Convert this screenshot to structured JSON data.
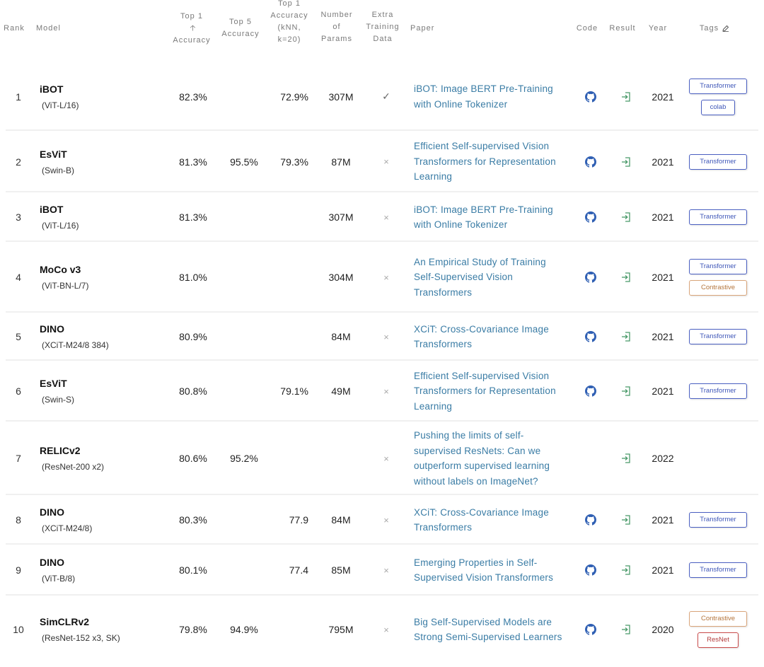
{
  "header": {
    "rank": "Rank",
    "model": "Model",
    "top1": [
      "Top 1",
      "Accuracy"
    ],
    "top5": [
      "Top 5",
      "Accuracy"
    ],
    "knn": [
      "Top 1",
      "Accuracy",
      "(kNN,",
      "k=20)"
    ],
    "params": [
      "Number",
      "of",
      "Params"
    ],
    "extra": [
      "Extra",
      "Training",
      "Data"
    ],
    "paper": "Paper",
    "code": "Code",
    "result": "Result",
    "year": "Year",
    "tags": "Tags"
  },
  "colors": {
    "paper_link": "#3a7ca5",
    "tag_transformer": "#3e56b8",
    "tag_contrastive": "#b4753c",
    "tag_resnet": "#b33b3b",
    "code_icon": "#2f5fb3",
    "result_icon": "#4a9a6a"
  },
  "icons": {
    "code": "github-icon",
    "result": "result-arrow-icon",
    "tags_edit": "edit-icon",
    "sort": "sort-up-arrow"
  },
  "rows": [
    {
      "rank": "1",
      "model": "iBOT",
      "variant": "(ViT-L/16)",
      "top1": "82.3%",
      "top5": "",
      "knn": "72.9%",
      "params": "307M",
      "extra": "✓",
      "paper": [
        "iBOT: Image BERT Pre-Training",
        "with Online Tokenizer"
      ],
      "code": true,
      "year": "2021",
      "tags": [
        {
          "label": "Transformer",
          "style": "blue"
        },
        {
          "label": "colab",
          "style": "blue-small"
        }
      ]
    },
    {
      "rank": "2",
      "model": "EsViT",
      "variant": "(Swin-B)",
      "top1": "81.3%",
      "top5": "95.5%",
      "knn": "79.3%",
      "params": "87M",
      "extra": "×",
      "paper": [
        "Efficient Self-supervised Vision",
        "Transformers for Representation",
        "Learning"
      ],
      "code": true,
      "year": "2021",
      "tags": [
        {
          "label": "Transformer",
          "style": "blue"
        }
      ]
    },
    {
      "rank": "3",
      "model": "iBOT",
      "variant": "(ViT-L/16)",
      "top1": "81.3%",
      "top5": "",
      "knn": "",
      "params": "307M",
      "extra": "×",
      "paper": [
        "iBOT: Image BERT Pre-Training",
        "with Online Tokenizer"
      ],
      "code": true,
      "year": "2021",
      "tags": [
        {
          "label": "Transformer",
          "style": "blue"
        }
      ]
    },
    {
      "rank": "4",
      "model": "MoCo v3",
      "variant": "(ViT-BN-L/7)",
      "top1": "81.0%",
      "top5": "",
      "knn": "",
      "params": "304M",
      "extra": "×",
      "paper": [
        "An Empirical Study of Training",
        "Self-Supervised Vision",
        "Transformers"
      ],
      "code": true,
      "year": "2021",
      "tags": [
        {
          "label": "Transformer",
          "style": "blue"
        },
        {
          "label": "Contrastive",
          "style": "orange"
        }
      ]
    },
    {
      "rank": "5",
      "model": "DINO",
      "variant": "(XCiT-M24/8 384)",
      "top1": "80.9%",
      "top5": "",
      "knn": "",
      "params": "84M",
      "extra": "×",
      "paper": [
        "XCiT: Cross-Covariance Image",
        "Transformers"
      ],
      "code": true,
      "year": "2021",
      "tags": [
        {
          "label": "Transformer",
          "style": "blue"
        }
      ]
    },
    {
      "rank": "6",
      "model": "EsViT",
      "variant": "(Swin-S)",
      "top1": "80.8%",
      "top5": "",
      "knn": "79.1%",
      "params": "49M",
      "extra": "×",
      "paper": [
        "Efficient Self-supervised Vision",
        "Transformers for Representation",
        "Learning"
      ],
      "code": true,
      "year": "2021",
      "tags": [
        {
          "label": "Transformer",
          "style": "blue"
        }
      ]
    },
    {
      "rank": "7",
      "model": "RELICv2",
      "variant": "(ResNet-200 x2)",
      "top1": "80.6%",
      "top5": "95.2%",
      "knn": "",
      "params": "",
      "extra": "×",
      "paper": [
        "Pushing the limits of self-",
        "supervised ResNets: Can we",
        "outperform supervised learning",
        "without labels on ImageNet?"
      ],
      "code": false,
      "year": "2022",
      "tags": []
    },
    {
      "rank": "8",
      "model": "DINO",
      "variant": "(XCiT-M24/8)",
      "top1": "80.3%",
      "top5": "",
      "knn": "77.9",
      "params": "84M",
      "extra": "×",
      "paper": [
        "XCiT: Cross-Covariance Image",
        "Transformers"
      ],
      "code": true,
      "year": "2021",
      "tags": [
        {
          "label": "Transformer",
          "style": "blue"
        }
      ]
    },
    {
      "rank": "9",
      "model": "DINO",
      "variant": "(ViT-B/8)",
      "top1": "80.1%",
      "top5": "",
      "knn": "77.4",
      "params": "85M",
      "extra": "×",
      "paper": [
        "Emerging Properties in Self-",
        "Supervised Vision Transformers"
      ],
      "code": true,
      "year": "2021",
      "tags": [
        {
          "label": "Transformer",
          "style": "blue"
        }
      ]
    },
    {
      "rank": "10",
      "model": "SimCLRv2",
      "variant": "(ResNet-152 x3, SK)",
      "top1": "79.8%",
      "top5": "94.9%",
      "knn": "",
      "params": "795M",
      "extra": "×",
      "paper": [
        "Big Self-Supervised Models are",
        "Strong Semi-Supervised Learners"
      ],
      "code": true,
      "year": "2020",
      "tags": [
        {
          "label": "Contrastive",
          "style": "orange"
        },
        {
          "label": "ResNet",
          "style": "red"
        }
      ]
    }
  ]
}
